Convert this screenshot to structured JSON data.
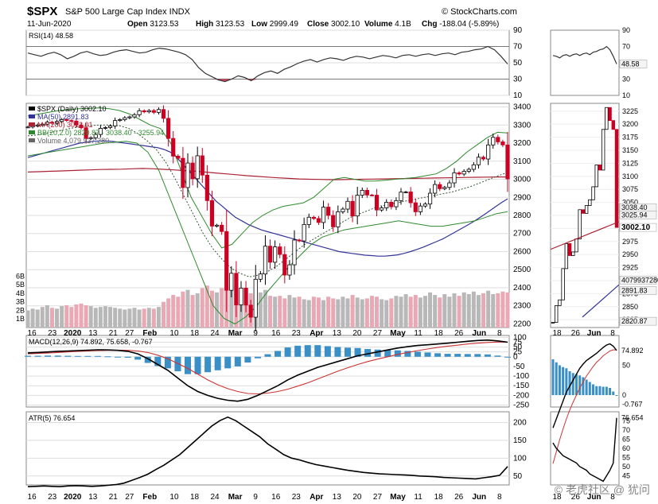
{
  "header": {
    "symbol": "$SPX",
    "name": "S&P 500 Large Cap Index  INDX",
    "source": "© StockCharts.com",
    "date": "11-Jun-2020",
    "open_label": "Open",
    "open": "3123.53",
    "high_label": "High",
    "high": "3123.53",
    "low_label": "Low",
    "low": "2999.49",
    "close_label": "Close",
    "close": "3002.10",
    "volume_label": "Volume",
    "volume": "4.1B",
    "chg_label": "Chg",
    "chg": "-188.04 (-5.89%)"
  },
  "colors": {
    "up": "#000000",
    "down": "#cc0022",
    "ma50": "#333399",
    "ma200": "#aa2233",
    "bb": "#2f8a2f",
    "macd_hist": "#3a8fc6",
    "rsi_fill_hi": "#2f8a2f",
    "rsi_fill_lo": "#cc0022",
    "vol_up": "#b8b8b8",
    "vol_down": "#e8a8b4"
  },
  "chart_data": [
    {
      "type": "line",
      "title": "RSI(14) 48.58",
      "series": [
        {
          "name": "RSI(14)",
          "values": [
            62,
            60,
            58,
            61,
            63,
            60,
            55,
            58,
            62,
            64,
            61,
            59,
            60,
            63,
            65,
            66,
            64,
            62,
            63,
            66,
            68,
            67,
            65,
            63,
            60,
            54,
            44,
            37,
            33,
            29,
            27,
            30,
            34,
            32,
            28,
            34,
            38,
            40,
            37,
            42,
            45,
            49,
            52,
            54,
            51,
            54,
            56,
            55,
            53,
            56,
            58,
            57,
            55,
            57,
            59,
            58,
            56,
            59,
            60,
            58,
            60,
            61,
            59,
            61,
            62,
            60,
            63,
            64,
            66,
            67,
            70,
            66,
            58,
            48.58
          ]
        }
      ],
      "yticks": [
        10,
        30,
        50,
        70,
        90
      ],
      "ylim": [
        10,
        90
      ],
      "last_label": "48.58"
    },
    {
      "type": "line",
      "title": "$SPX (Daily) 3002.10",
      "legend": [
        "$SPX (Daily) 3002.10",
        "MA(50) 2891.83",
        "MA(200) 3013.01",
        "BB(20,2.0) 2820.87 - 3038.40 - 3255.94",
        "Volume 4,079,937,280"
      ],
      "x_ticks": [
        "16",
        "23",
        "2020",
        "13",
        "21",
        "27",
        "Feb",
        "10",
        "18",
        "24",
        "Mar",
        "9",
        "16",
        "23",
        "Apr",
        "13",
        "20",
        "27",
        "May",
        "11",
        "18",
        "26",
        "Jun",
        "8"
      ],
      "x_tick_index": [
        1,
        6,
        11,
        16,
        21,
        25,
        30,
        36,
        41,
        46,
        51,
        56,
        61,
        66,
        71,
        76,
        81,
        86,
        91,
        96,
        101,
        106,
        111,
        116
      ],
      "yticks": [
        2200,
        2300,
        2400,
        2500,
        2600,
        2700,
        2800,
        2900,
        3000,
        3100,
        3200,
        3300,
        3400
      ],
      "ylim": [
        2180,
        3420
      ],
      "close": [
        3289,
        3295,
        3300,
        3305,
        3316,
        3310,
        3320,
        3330,
        3325,
        3322,
        3300,
        3285,
        3225,
        3230,
        3248,
        3282,
        3286,
        3295,
        3325,
        3330,
        3340,
        3345,
        3357,
        3379,
        3373,
        3380,
        3370,
        3386,
        3337,
        3226,
        3128,
        3116,
        2954,
        3090,
        3003,
        3130,
        3023,
        2882,
        2741,
        2746,
        2711,
        2386,
        2480,
        2305,
        2398,
        2304,
        2237,
        2447,
        2476,
        2630,
        2541,
        2626,
        2584,
        2470,
        2527,
        2664,
        2659,
        2750,
        2790,
        2783,
        2761,
        2846,
        2800,
        2737,
        2820,
        2835,
        2878,
        2797,
        2912,
        2939,
        2913,
        2912,
        2830,
        2842,
        2873,
        2848,
        2882,
        2929,
        2930,
        2870,
        2820,
        2852,
        2863,
        2923,
        2971,
        2948,
        2955,
        2980,
        3036,
        3029,
        3044,
        3055,
        3080,
        3122,
        3112,
        3190,
        3232,
        3207,
        3190,
        3002
      ],
      "ma50": [
        3120,
        3130,
        3140,
        3150,
        3160,
        3170,
        3180,
        3190,
        3200,
        3205,
        3210,
        3212,
        3212,
        3210,
        3205,
        3200,
        3195,
        3190,
        3185,
        3180,
        3175,
        3165,
        3150,
        3120,
        3080,
        3040,
        3000,
        2960,
        2920,
        2880,
        2850,
        2820,
        2790,
        2770,
        2750,
        2735,
        2720,
        2710,
        2700,
        2690,
        2680,
        2670,
        2660,
        2650,
        2640,
        2630,
        2620,
        2610,
        2600,
        2595,
        2590,
        2585,
        2580,
        2578,
        2575,
        2575,
        2578,
        2582,
        2590,
        2600,
        2612,
        2625,
        2640,
        2655,
        2670,
        2690,
        2710,
        2730,
        2750,
        2772,
        2795,
        2820,
        2845,
        2870,
        2891.83
      ],
      "ma200": [
        3040,
        3042,
        3044,
        3046,
        3048,
        3050,
        3052,
        3054,
        3055,
        3056,
        3058,
        3060,
        3058,
        3055,
        3052,
        3048,
        3045,
        3040,
        3035,
        3030,
        3025,
        3020,
        3016,
        3012,
        3008,
        3005,
        3002,
        3000,
        2999,
        2998,
        2998,
        2999,
        3000,
        3001,
        3002,
        3003,
        3004,
        3005,
        3006,
        3007,
        3008,
        3009,
        3010,
        3011,
        3012,
        3013,
        3013.01
      ],
      "bb_mid": [
        3240,
        3245,
        3255,
        3265,
        3275,
        3285,
        3292,
        3298,
        3300,
        3300,
        3295,
        3280,
        3250,
        3210,
        3160,
        3090,
        3000,
        2900,
        2800,
        2700,
        2620,
        2560,
        2510,
        2480,
        2460,
        2470,
        2490,
        2520,
        2560,
        2600,
        2640,
        2670,
        2700,
        2730,
        2760,
        2790,
        2810,
        2830,
        2850,
        2860,
        2870,
        2880,
        2890,
        2900,
        2910,
        2920,
        2930,
        2945,
        2960,
        2980,
        3000,
        3020,
        3038.4
      ],
      "bb_upper": [
        3350,
        3360,
        3370,
        3380,
        3385,
        3390,
        3392,
        3395,
        3390,
        3380,
        3360,
        3330,
        3300,
        3280,
        3200,
        3050,
        2900,
        2800,
        2700,
        2620,
        2640,
        2700,
        2760,
        2800,
        2830,
        2850,
        2860,
        2870,
        2900,
        2950,
        3000,
        3010,
        3000,
        2990,
        2990,
        2995,
        3000,
        3005,
        3010,
        3020,
        3030,
        3060,
        3100,
        3150,
        3190,
        3230,
        3260,
        3255.94
      ],
      "bb_lower": [
        3130,
        3140,
        3150,
        3160,
        3170,
        3180,
        3190,
        3200,
        3205,
        3210,
        3200,
        3150,
        3050,
        2900,
        2750,
        2600,
        2450,
        2300,
        2230,
        2200,
        2240,
        2300,
        2380,
        2450,
        2520,
        2580,
        2640,
        2680,
        2700,
        2720,
        2730,
        2740,
        2750,
        2760,
        2770,
        2760,
        2750,
        2740,
        2740,
        2750,
        2760,
        2770,
        2790,
        2810,
        2820.87
      ],
      "volume": [
        2.0,
        2.2,
        2.1,
        2.4,
        2.6,
        2.3,
        2.2,
        2.5,
        2.6,
        2.4,
        2.7,
        2.8,
        2.6,
        2.5,
        2.3,
        2.4,
        2.5,
        2.4,
        2.3,
        2.2,
        2.1,
        2.2,
        2.3,
        2.1,
        2.2,
        2.3,
        2.2,
        2.4,
        3.0,
        3.4,
        3.8,
        3.6,
        4.2,
        4.4,
        3.8,
        4.0,
        4.6,
        4.9,
        4.3,
        4.1,
        4.6,
        4.8,
        5.0,
        5.1,
        4.6,
        4.2,
        4.0,
        3.9,
        4.1,
        4.4,
        3.7,
        3.6,
        3.7,
        3.4,
        3.8,
        3.5,
        3.6,
        3.3,
        3.2,
        3.6,
        3.5,
        3.2,
        3.6,
        3.4,
        3.3,
        3.6,
        3.4,
        3.8,
        3.5,
        3.3,
        3.4,
        3.7,
        3.6,
        3.3,
        3.2,
        3.4,
        3.7,
        3.6,
        3.9,
        3.6,
        3.8,
        3.5,
        3.7,
        4.1,
        3.8,
        3.5,
        3.9,
        3.6,
        4.0,
        3.7,
        4.1,
        3.9,
        4.2,
        3.8,
        4.0,
        4.3,
        3.9,
        4.0,
        4.2,
        4.1
      ],
      "volume_ticks": [
        "1B",
        "2B",
        "3B",
        "4B",
        "5B",
        "6B"
      ]
    },
    {
      "type": "line",
      "title": "MACD(12,26,9) 74.892, 75.658, -0.767",
      "series": [
        {
          "name": "MACD(12,26,9)",
          "values": [
            20,
            22,
            25,
            28,
            30,
            32,
            34,
            36,
            35,
            33,
            28,
            15,
            -10,
            -40,
            -70,
            -110,
            -150,
            -180,
            -200,
            -215,
            -225,
            -230,
            -220,
            -200,
            -175,
            -150,
            -120,
            -95,
            -75,
            -55,
            -40,
            -25,
            -10,
            5,
            15,
            25,
            35,
            45,
            52,
            58,
            62,
            66,
            70,
            75,
            80,
            84,
            86,
            82,
            74.892
          ]
        },
        {
          "name": "Signal",
          "values": [
            15,
            17,
            19,
            22,
            25,
            28,
            30,
            32,
            33,
            34,
            33,
            30,
            22,
            8,
            -10,
            -35,
            -60,
            -90,
            -120,
            -145,
            -165,
            -180,
            -190,
            -192,
            -188,
            -180,
            -168,
            -152,
            -135,
            -115,
            -95,
            -75,
            -57,
            -40,
            -25,
            -12,
            0,
            12,
            22,
            32,
            40,
            48,
            55,
            60,
            66,
            70,
            74,
            76,
            75.658
          ]
        },
        {
          "name": "Histogram",
          "values": [
            5,
            5,
            6,
            6,
            5,
            4,
            4,
            4,
            2,
            -1,
            -5,
            -15,
            -32,
            -48,
            -60,
            -75,
            -90,
            -90,
            -80,
            -70,
            -60,
            -50,
            -30,
            -8,
            13,
            30,
            48,
            57,
            60,
            60,
            55,
            50,
            47,
            45,
            40,
            37,
            35,
            33,
            30,
            26,
            22,
            18,
            15,
            15,
            14,
            14,
            12,
            6,
            -0.767
          ]
        }
      ],
      "yticks": [
        -250,
        -200,
        -150,
        -100,
        -50,
        0,
        25,
        50,
        75,
        100
      ],
      "ylim": [
        -260,
        110
      ]
    },
    {
      "type": "line",
      "title": "ATR(5) 76.654",
      "series": [
        {
          "name": "ATR(5)",
          "values": [
            20,
            21,
            22,
            21,
            20,
            22,
            23,
            22,
            21,
            22,
            24,
            26,
            30,
            38,
            46,
            55,
            68,
            80,
            95,
            110,
            130,
            150,
            170,
            190,
            205,
            215,
            205,
            190,
            175,
            160,
            140,
            125,
            110,
            100,
            95,
            88,
            82,
            78,
            74,
            70,
            66,
            63,
            60,
            58,
            56,
            55,
            54,
            53,
            52,
            50,
            49,
            48,
            46,
            45,
            44,
            43,
            42,
            45,
            48,
            52,
            76.654
          ]
        }
      ],
      "yticks": [
        50,
        100,
        150,
        200
      ],
      "ylim": [
        25,
        230
      ]
    }
  ],
  "zoom_panel": {
    "x_ticks": [
      "18",
      "26",
      "Jun",
      "8"
    ],
    "price_ticks": [
      "2825",
      "2850",
      "2875",
      "2900",
      "2925",
      "2950",
      "2975",
      "3000",
      "3025",
      "3050",
      "3075",
      "3100",
      "3125",
      "3150",
      "3175",
      "3200",
      "3225"
    ],
    "price_tags": [
      "3038.40",
      "3025.94",
      "3002.10",
      "4079937280",
      "2891.83",
      "2820.87"
    ],
    "rsi_ticks": [
      "10",
      "30",
      "50",
      "70",
      "90"
    ],
    "rsi_tag": "48.58",
    "macd_ticks": [
      "50",
      "0",
      "-0.767"
    ],
    "macd_tag": "74.892",
    "atr_ticks": [
      "45",
      "50",
      "55",
      "60",
      "65",
      "70",
      "75"
    ],
    "atr_tag": "76.654"
  },
  "watermark": "© 老虎社区 @ 犹问"
}
